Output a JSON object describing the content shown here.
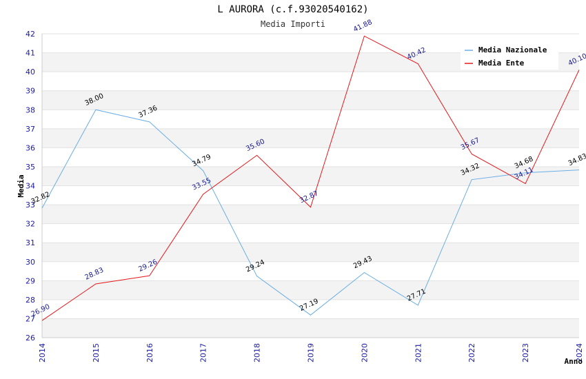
{
  "chart_data": {
    "type": "line",
    "title": "L AURORA (c.f.93020540162)",
    "subtitle": "Media Importi",
    "xlabel": "Anno",
    "ylabel": "Media",
    "ylim": [
      26,
      42
    ],
    "yticks": [
      "26",
      "27",
      "28",
      "29",
      "30",
      "31",
      "32",
      "33",
      "34",
      "35",
      "36",
      "37",
      "38",
      "39",
      "40",
      "41",
      "42"
    ],
    "x": [
      "2014",
      "2015",
      "2016",
      "2017",
      "2018",
      "2019",
      "2020",
      "2021",
      "2022",
      "2023",
      "2024"
    ],
    "series": [
      {
        "name": "Media Nazionale",
        "color": "#6aaee6",
        "label_color": "#000000",
        "values": [
          32.82,
          38.0,
          37.36,
          34.79,
          29.24,
          27.19,
          29.43,
          27.71,
          34.32,
          34.68,
          34.83
        ],
        "labels": [
          "32.82",
          "38.00",
          "37.36",
          "34.79",
          "29.24",
          "27.19",
          "29.43",
          "27.71",
          "34.32",
          "34.68",
          "34.83"
        ]
      },
      {
        "name": "Media Ente",
        "color": "#e31a1c",
        "label_color": "#1a1a8c",
        "values": [
          26.9,
          28.83,
          29.26,
          33.55,
          35.6,
          32.87,
          41.88,
          40.42,
          35.67,
          34.11,
          40.1
        ],
        "labels": [
          "26.90",
          "28.83",
          "29.26",
          "33.55",
          "35.60",
          "32.87",
          "41.88",
          "40.42",
          "35.67",
          "34.11",
          "40.10"
        ]
      }
    ],
    "grid": true,
    "legend_position": "top-right"
  }
}
